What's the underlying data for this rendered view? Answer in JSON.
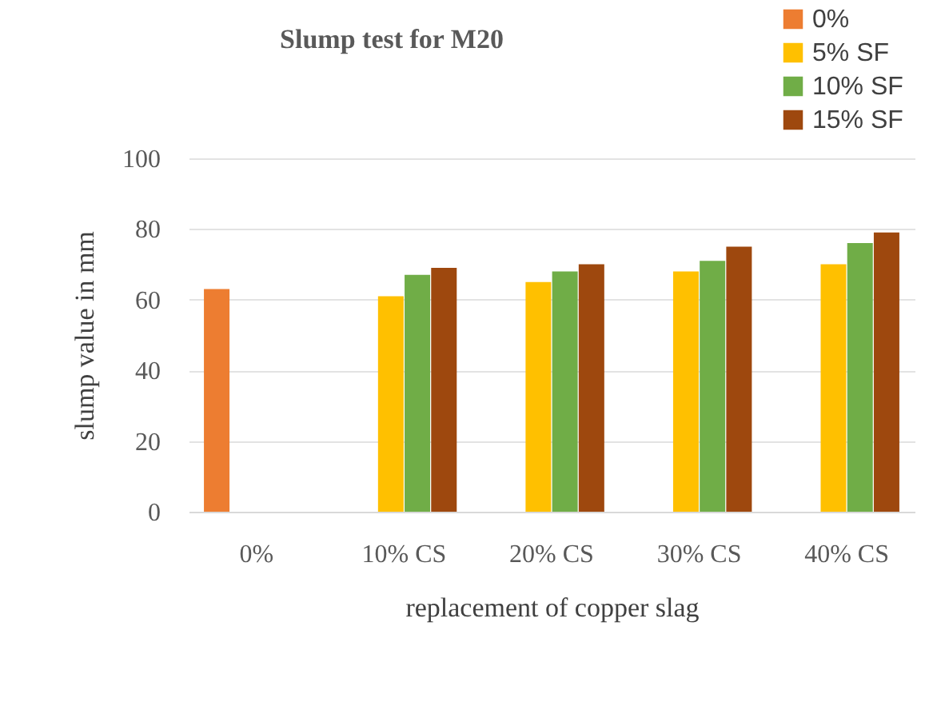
{
  "chart_data": {
    "type": "bar",
    "title": "Slump test for M20",
    "xlabel": "replacement of copper slag",
    "ylabel": "slump value in mm",
    "categories": [
      "0%",
      "10% CS",
      "20% CS",
      "30% CS",
      "40% CS"
    ],
    "series": [
      {
        "name": "0%",
        "color": "#ed7d31",
        "values": [
          63,
          null,
          null,
          null,
          null
        ]
      },
      {
        "name": "5% SF",
        "color": "#ffc000",
        "values": [
          null,
          61,
          65,
          68,
          70
        ]
      },
      {
        "name": "10% SF",
        "color": "#70ad47",
        "values": [
          null,
          67,
          68,
          71,
          76
        ]
      },
      {
        "name": "15% SF",
        "color": "#9e480e",
        "values": [
          null,
          69,
          70,
          75,
          79
        ]
      }
    ],
    "ylim": [
      0,
      100
    ],
    "yticks": [
      0,
      20,
      40,
      60,
      80,
      100
    ],
    "grid": "y",
    "legend": "top right"
  }
}
